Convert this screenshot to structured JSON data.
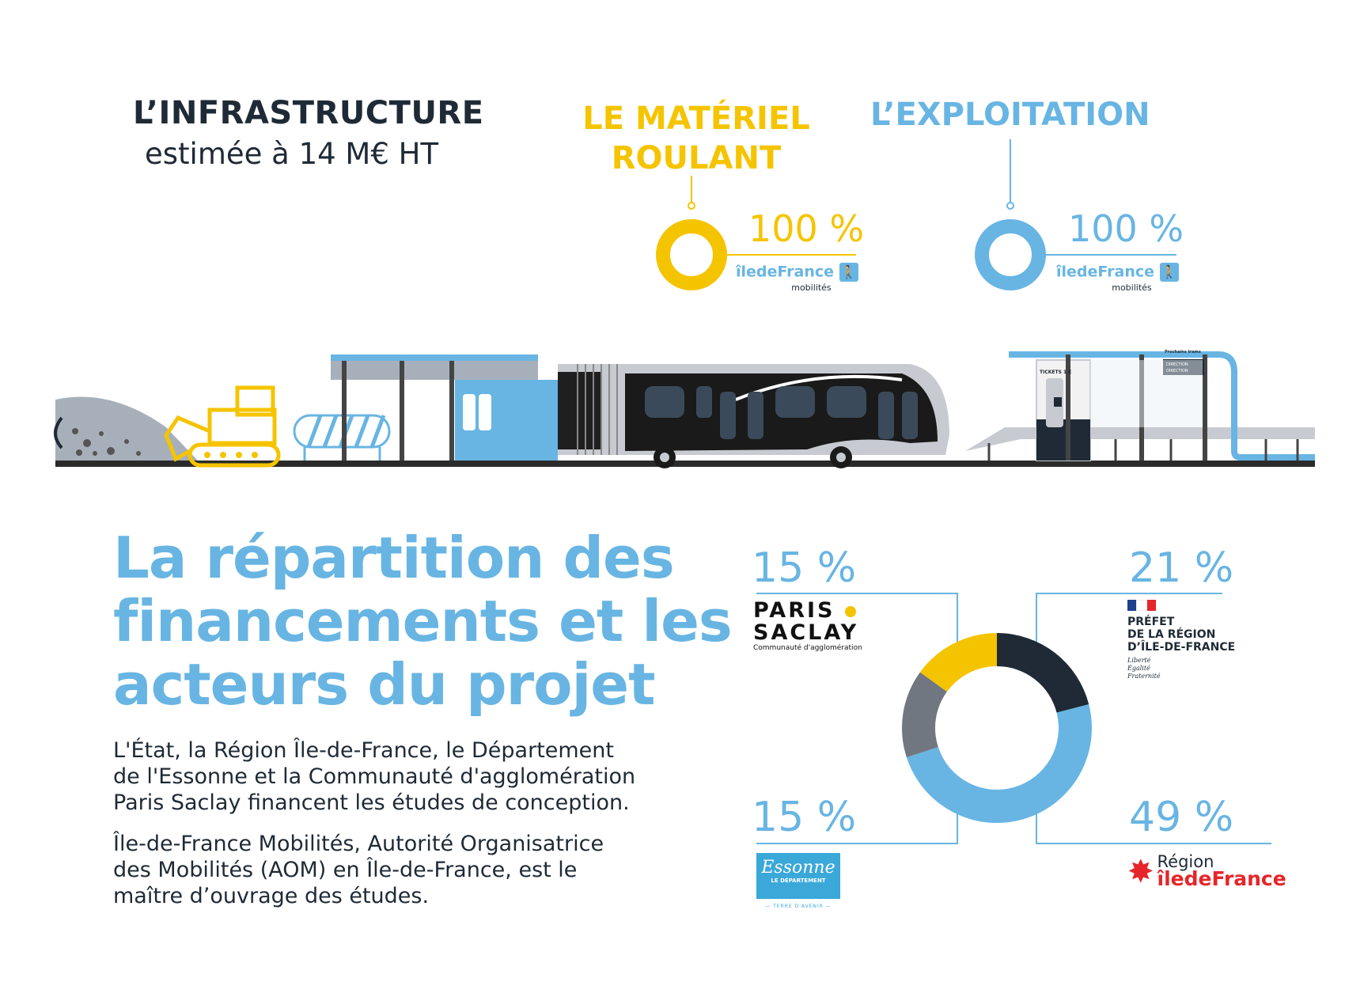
{
  "infrastructure": {
    "title": "L’INFRASTRUCTURE",
    "subtitle": "estimée à 14 M€ HT"
  },
  "materiel": {
    "title_line1": "LE MATÉRIEL",
    "title_line2": "ROULANT",
    "percent": "100 %",
    "logo_main": "îledeFrance",
    "logo_sub": "mobilités"
  },
  "exploitation": {
    "title": "L’EXPLOITATION",
    "percent": "100 %",
    "logo_main": "îledeFrance",
    "logo_sub": "mobilités"
  },
  "illustration": {
    "ticket_label": "TICKETS 1 €",
    "board_title": "Prochains trams",
    "board_line1": "DIRECTION",
    "board_line2": "DIRECTION"
  },
  "financing": {
    "title_line1": "La répartition des",
    "title_line2": "financements et les",
    "title_line3": "acteurs du projet",
    "para1_line1": "L'État, la Région Île-de-France, le Département",
    "para1_line2": "de l'Essonne et la Communauté d'agglomération",
    "para1_line3": "Paris Saclay financent les études de conception.",
    "para2_line1": "Île-de-France Mobilités, Autorité Organisatrice",
    "para2_line2": "des Mobilités (AOM) en Île-de-France, est le",
    "para2_line3": "maître d’ouvrage des études."
  },
  "partners": {
    "paris_saclay": {
      "percent": "15 %",
      "logo_line1": "PARIS",
      "logo_line2": "SACLAY",
      "logo_sub": "Communauté d'agglomération"
    },
    "prefet": {
      "percent": "21 %",
      "logo_line1": "PRÉFET",
      "logo_line2": "DE LA RÉGION",
      "logo_line3": "D’ÎLE-DE-FRANCE",
      "motto1": "Liberté",
      "motto2": "Égalité",
      "motto3": "Fraternité"
    },
    "essonne": {
      "percent": "15 %",
      "logo_main": "Essonne",
      "logo_sub": "LE DÉPARTEMENT",
      "tagline": "— TERRE D'AVENIR —"
    },
    "region": {
      "percent": "49 %",
      "logo_line1": "Région",
      "logo_line2": "îledeFrance"
    }
  },
  "chart_data": {
    "type": "pie",
    "categories": [
      "PRÉFET DE LA RÉGION D’ÎLE-DE-FRANCE",
      "Région îledeFrance",
      "Essonne",
      "PARIS SACLAY"
    ],
    "values": [
      21,
      49,
      15,
      15
    ],
    "colors": [
      "#1f2a36",
      "#68b5e3",
      "#717780",
      "#f5c400"
    ]
  },
  "colors": {
    "dark": "#1f2a36",
    "yellow": "#f5c400",
    "blue": "#68b5e3",
    "grey": "#717780"
  }
}
